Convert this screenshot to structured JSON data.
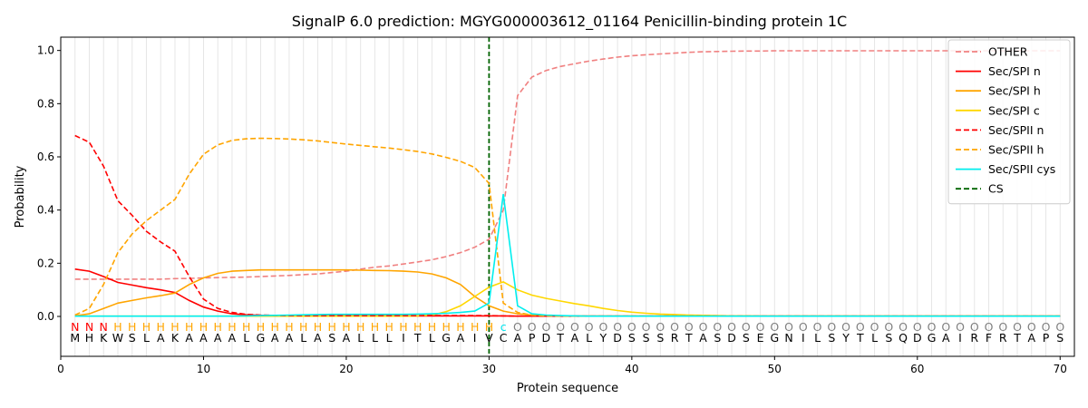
{
  "chart_data": {
    "type": "line",
    "title": "SignalP 6.0 prediction: MGYG000003612_01164 Penicillin-binding protein 1C",
    "xlabel": "Protein sequence",
    "ylabel": "Probability",
    "xlim": [
      0,
      71
    ],
    "ylim": [
      -0.15,
      1.05
    ],
    "x_ticks": [
      "0",
      "10",
      "20",
      "30",
      "40",
      "50",
      "60",
      "70"
    ],
    "y_ticks": [
      "0.0",
      "0.2",
      "0.4",
      "0.6",
      "0.8",
      "1.0"
    ],
    "grid": "vertical lines at every residue",
    "legend_position": "top-right",
    "sequence": [
      "M",
      "H",
      "K",
      "W",
      "S",
      "L",
      "A",
      "K",
      "A",
      "A",
      "A",
      "A",
      "L",
      "G",
      "A",
      "A",
      "L",
      "A",
      "S",
      "A",
      "L",
      "L",
      "L",
      "I",
      "T",
      "L",
      "G",
      "A",
      "I",
      "V",
      "C",
      "A",
      "P",
      "D",
      "T",
      "A",
      "L",
      "Y",
      "D",
      "S",
      "S",
      "S",
      "R",
      "T",
      "A",
      "S",
      "D",
      "S",
      "E",
      "G",
      "N",
      "I",
      "L",
      "S",
      "Y",
      "T",
      "L",
      "S",
      "Q",
      "D",
      "G",
      "A",
      "I",
      "R",
      "F",
      "R",
      "T",
      "A",
      "P",
      "S"
    ],
    "region_labels": [
      "N",
      "N",
      "N",
      "H",
      "H",
      "H",
      "H",
      "H",
      "H",
      "H",
      "H",
      "H",
      "H",
      "H",
      "H",
      "H",
      "H",
      "H",
      "H",
      "H",
      "H",
      "H",
      "H",
      "H",
      "H",
      "H",
      "H",
      "H",
      "H",
      "H",
      "c",
      "O",
      "O",
      "O",
      "O",
      "O",
      "O",
      "O",
      "O",
      "O",
      "O",
      "O",
      "O",
      "O",
      "O",
      "O",
      "O",
      "O",
      "O",
      "O",
      "O",
      "O",
      "O",
      "O",
      "O",
      "O",
      "O",
      "O",
      "O",
      "O",
      "O",
      "O",
      "O",
      "O",
      "O",
      "O",
      "O",
      "O",
      "O",
      "O"
    ],
    "region_colors": {
      "N": "#ff0000",
      "H": "#ffa500",
      "c": "#00e5ee",
      "O": "#808080"
    },
    "cleavage_site": 30,
    "series": [
      {
        "name": "OTHER",
        "color": "#f08080",
        "dash": "dashed",
        "values": [
          0.14,
          0.14,
          0.14,
          0.14,
          0.14,
          0.14,
          0.14,
          0.142,
          0.143,
          0.145,
          0.146,
          0.147,
          0.148,
          0.15,
          0.152,
          0.154,
          0.157,
          0.16,
          0.165,
          0.17,
          0.178,
          0.185,
          0.19,
          0.197,
          0.205,
          0.213,
          0.225,
          0.24,
          0.26,
          0.29,
          0.4,
          0.83,
          0.9,
          0.925,
          0.94,
          0.95,
          0.96,
          0.968,
          0.975,
          0.98,
          0.984,
          0.987,
          0.99,
          0.993,
          0.995,
          0.996,
          0.997,
          0.998,
          0.998,
          0.999,
          0.999,
          0.999,
          0.999,
          0.999,
          0.999,
          0.999,
          0.999,
          0.999,
          0.999,
          0.999,
          0.999,
          0.999,
          0.999,
          0.999,
          0.999,
          0.999,
          0.999,
          0.999,
          0.999,
          0.999
        ]
      },
      {
        "name": "Sec/SPI n",
        "color": "#ff0000",
        "dash": "solid",
        "values": [
          0.178,
          0.17,
          0.15,
          0.128,
          0.118,
          0.108,
          0.1,
          0.09,
          0.06,
          0.035,
          0.02,
          0.01,
          0.006,
          0.004,
          0.003,
          0.002,
          0.002,
          0.002,
          0.002,
          0.002,
          0.002,
          0.002,
          0.002,
          0.002,
          0.002,
          0.002,
          0.002,
          0.002,
          0.002,
          0.002,
          0.002,
          0.001,
          0.001,
          0.001,
          0.001,
          0.001,
          0.001,
          0.001,
          0.001,
          0.001,
          0.001,
          0.001,
          0.001,
          0.001,
          0.001,
          0.001,
          0.001,
          0.001,
          0.001,
          0.001,
          0.001,
          0.001,
          0.001,
          0.001,
          0.001,
          0.001,
          0.001,
          0.001,
          0.001,
          0.001,
          0.001,
          0.001,
          0.001,
          0.001,
          0.001,
          0.001,
          0.001,
          0.001,
          0.001,
          0.001
        ]
      },
      {
        "name": "Sec/SPI h",
        "color": "#ffa500",
        "dash": "solid",
        "values": [
          0.002,
          0.01,
          0.03,
          0.05,
          0.06,
          0.07,
          0.078,
          0.088,
          0.12,
          0.145,
          0.162,
          0.17,
          0.173,
          0.175,
          0.175,
          0.175,
          0.175,
          0.175,
          0.175,
          0.175,
          0.174,
          0.173,
          0.172,
          0.17,
          0.167,
          0.16,
          0.145,
          0.12,
          0.075,
          0.04,
          0.02,
          0.01,
          0.005,
          0.003,
          0.002,
          0.001,
          0.001,
          0.001,
          0.001,
          0.001,
          0.001,
          0.001,
          0.001,
          0.001,
          0.001,
          0.001,
          0.001,
          0.001,
          0.001,
          0.001,
          0.001,
          0.001,
          0.001,
          0.001,
          0.001,
          0.001,
          0.001,
          0.001,
          0.001,
          0.001,
          0.001,
          0.001,
          0.001,
          0.001,
          0.001,
          0.001,
          0.001,
          0.001,
          0.001,
          0.001
        ]
      },
      {
        "name": "Sec/SPI c",
        "color": "#ffd700",
        "dash": "solid",
        "values": [
          0.001,
          0.001,
          0.001,
          0.001,
          0.001,
          0.001,
          0.001,
          0.001,
          0.001,
          0.001,
          0.001,
          0.001,
          0.001,
          0.001,
          0.001,
          0.001,
          0.001,
          0.001,
          0.001,
          0.001,
          0.001,
          0.001,
          0.001,
          0.001,
          0.002,
          0.005,
          0.018,
          0.04,
          0.075,
          0.11,
          0.13,
          0.1,
          0.08,
          0.068,
          0.058,
          0.048,
          0.04,
          0.03,
          0.022,
          0.016,
          0.012,
          0.009,
          0.007,
          0.005,
          0.004,
          0.003,
          0.002,
          0.002,
          0.001,
          0.001,
          0.001,
          0.001,
          0.001,
          0.001,
          0.001,
          0.001,
          0.001,
          0.001,
          0.001,
          0.001,
          0.001,
          0.001,
          0.001,
          0.001,
          0.001,
          0.001,
          0.001,
          0.001,
          0.001,
          0.001
        ]
      },
      {
        "name": "Sec/SPII n",
        "color": "#ff0000",
        "dash": "dashed",
        "values": [
          0.68,
          0.655,
          0.565,
          0.435,
          0.38,
          0.32,
          0.28,
          0.245,
          0.15,
          0.065,
          0.03,
          0.015,
          0.008,
          0.005,
          0.004,
          0.003,
          0.003,
          0.003,
          0.003,
          0.003,
          0.003,
          0.003,
          0.003,
          0.003,
          0.003,
          0.003,
          0.003,
          0.003,
          0.003,
          0.003,
          0.002,
          0.001,
          0.001,
          0.001,
          0.001,
          0.001,
          0.001,
          0.001,
          0.001,
          0.001,
          0.001,
          0.001,
          0.001,
          0.001,
          0.001,
          0.001,
          0.001,
          0.001,
          0.001,
          0.001,
          0.001,
          0.001,
          0.001,
          0.001,
          0.001,
          0.001,
          0.001,
          0.001,
          0.001,
          0.001,
          0.001,
          0.001,
          0.001,
          0.001,
          0.001,
          0.001,
          0.001,
          0.001,
          0.001,
          0.001
        ]
      },
      {
        "name": "Sec/SPII h",
        "color": "#ffa500",
        "dash": "dashed",
        "values": [
          0.005,
          0.03,
          0.12,
          0.24,
          0.31,
          0.36,
          0.4,
          0.44,
          0.535,
          0.61,
          0.645,
          0.662,
          0.668,
          0.67,
          0.669,
          0.667,
          0.664,
          0.66,
          0.654,
          0.648,
          0.643,
          0.638,
          0.633,
          0.627,
          0.62,
          0.611,
          0.598,
          0.583,
          0.56,
          0.5,
          0.05,
          0.015,
          0.005,
          0.002,
          0.001,
          0.001,
          0.001,
          0.001,
          0.001,
          0.001,
          0.001,
          0.001,
          0.001,
          0.001,
          0.001,
          0.001,
          0.001,
          0.001,
          0.001,
          0.001,
          0.001,
          0.001,
          0.001,
          0.001,
          0.001,
          0.001,
          0.001,
          0.001,
          0.001,
          0.001,
          0.001,
          0.001,
          0.001,
          0.001,
          0.001,
          0.001,
          0.001,
          0.001,
          0.001,
          0.001
        ]
      },
      {
        "name": "Sec/SPII cys",
        "color": "#00eeee",
        "dash": "solid",
        "values": [
          0.001,
          0.001,
          0.001,
          0.001,
          0.001,
          0.001,
          0.001,
          0.001,
          0.001,
          0.001,
          0.001,
          0.001,
          0.002,
          0.003,
          0.004,
          0.005,
          0.006,
          0.007,
          0.008,
          0.008,
          0.008,
          0.008,
          0.008,
          0.008,
          0.009,
          0.01,
          0.012,
          0.015,
          0.02,
          0.05,
          0.46,
          0.04,
          0.01,
          0.005,
          0.003,
          0.002,
          0.001,
          0.001,
          0.001,
          0.001,
          0.001,
          0.001,
          0.001,
          0.001,
          0.001,
          0.001,
          0.001,
          0.001,
          0.001,
          0.001,
          0.001,
          0.001,
          0.001,
          0.001,
          0.001,
          0.001,
          0.001,
          0.001,
          0.001,
          0.001,
          0.001,
          0.001,
          0.001,
          0.001,
          0.001,
          0.001,
          0.001,
          0.001,
          0.001,
          0.001
        ]
      }
    ],
    "cs_legend": {
      "name": "CS",
      "color": "#006400",
      "dash": "dashed"
    }
  }
}
